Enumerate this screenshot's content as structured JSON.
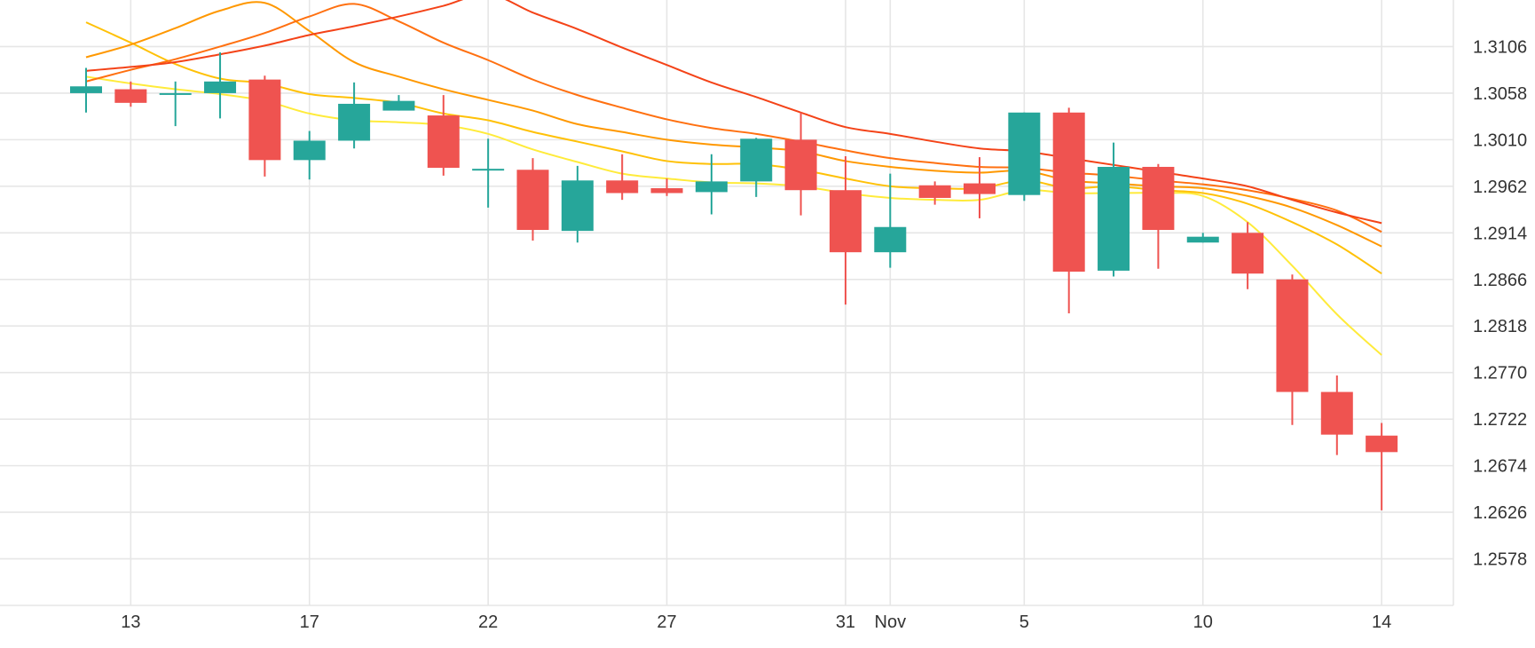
{
  "chart_data": {
    "type": "candlestick",
    "title": "",
    "xlabel": "",
    "ylabel": "",
    "ylim": [
      1.253,
      1.3154
    ],
    "x_ticks": [
      "13",
      "17",
      "22",
      "27",
      "31",
      "Nov",
      "5",
      "10",
      "14"
    ],
    "y_ticks": [
      "1.3106",
      "1.3058",
      "1.3010",
      "1.2962",
      "1.2914",
      "1.2866",
      "1.2818",
      "1.2770",
      "1.2722",
      "1.2674",
      "1.2626",
      "1.2578"
    ],
    "x_tick_positions": [
      2,
      6,
      10,
      14,
      18,
      19,
      22,
      26,
      30
    ],
    "colors": {
      "up": "#26a69a",
      "down": "#ef5350",
      "ma": [
        "#ffeb3b",
        "#ffc107",
        "#ff9800",
        "#ff7010",
        "#f44318"
      ]
    },
    "candles": [
      {
        "i": 1,
        "o": 1.3058,
        "h": 1.3084,
        "l": 1.3038,
        "c": 1.3065
      },
      {
        "i": 2,
        "o": 1.3062,
        "h": 1.307,
        "l": 1.3044,
        "c": 1.3048
      },
      {
        "i": 3,
        "o": 1.3058,
        "h": 1.307,
        "l": 1.3024,
        "c": 1.3058
      },
      {
        "i": 4,
        "o": 1.3058,
        "h": 1.31,
        "l": 1.3032,
        "c": 1.307
      },
      {
        "i": 5,
        "o": 1.3072,
        "h": 1.3076,
        "l": 1.2972,
        "c": 1.2989
      },
      {
        "i": 6,
        "o": 1.2989,
        "h": 1.3019,
        "l": 1.2969,
        "c": 1.3009
      },
      {
        "i": 7,
        "o": 1.3009,
        "h": 1.3069,
        "l": 1.3001,
        "c": 1.3047
      },
      {
        "i": 8,
        "o": 1.304,
        "h": 1.3056,
        "l": 1.304,
        "c": 1.305
      },
      {
        "i": 9,
        "o": 1.3035,
        "h": 1.3056,
        "l": 1.2973,
        "c": 1.2981
      },
      {
        "i": 10,
        "o": 1.298,
        "h": 1.3011,
        "l": 1.294,
        "c": 1.298
      },
      {
        "i": 11,
        "o": 1.2979,
        "h": 1.2991,
        "l": 1.2906,
        "c": 1.2917
      },
      {
        "i": 12,
        "o": 1.2916,
        "h": 1.2983,
        "l": 1.2904,
        "c": 1.2968
      },
      {
        "i": 13,
        "o": 1.2968,
        "h": 1.2995,
        "l": 1.2948,
        "c": 1.2955
      },
      {
        "i": 14,
        "o": 1.296,
        "h": 1.297,
        "l": 1.2952,
        "c": 1.2955
      },
      {
        "i": 15,
        "o": 1.2956,
        "h": 1.2995,
        "l": 1.2933,
        "c": 1.2967
      },
      {
        "i": 16,
        "o": 1.2967,
        "h": 1.3012,
        "l": 1.2951,
        "c": 1.3011
      },
      {
        "i": 17,
        "o": 1.301,
        "h": 1.3038,
        "l": 1.2932,
        "c": 1.2958
      },
      {
        "i": 18,
        "o": 1.2958,
        "h": 1.2993,
        "l": 1.284,
        "c": 1.2894
      },
      {
        "i": 19,
        "o": 1.2894,
        "h": 1.2975,
        "l": 1.2878,
        "c": 1.292
      },
      {
        "i": 20,
        "o": 1.2963,
        "h": 1.2967,
        "l": 1.2943,
        "c": 1.295
      },
      {
        "i": 21,
        "o": 1.2965,
        "h": 1.2992,
        "l": 1.2929,
        "c": 1.2954
      },
      {
        "i": 22,
        "o": 1.2953,
        "h": 1.3038,
        "l": 1.2947,
        "c": 1.3038
      },
      {
        "i": 23,
        "o": 1.3038,
        "h": 1.3043,
        "l": 1.2831,
        "c": 1.2874
      },
      {
        "i": 24,
        "o": 1.2875,
        "h": 1.3007,
        "l": 1.2869,
        "c": 1.2982
      },
      {
        "i": 25,
        "o": 1.2982,
        "h": 1.2985,
        "l": 1.2877,
        "c": 1.2917
      },
      {
        "i": 26,
        "o": 1.2904,
        "h": 1.2914,
        "l": 1.2904,
        "c": 1.291
      },
      {
        "i": 27,
        "o": 1.2914,
        "h": 1.2925,
        "l": 1.2856,
        "c": 1.2872
      },
      {
        "i": 28,
        "o": 1.2866,
        "h": 1.2871,
        "l": 1.2716,
        "c": 1.275
      },
      {
        "i": 29,
        "o": 1.275,
        "h": 1.2767,
        "l": 1.2685,
        "c": 1.2706
      },
      {
        "i": 30,
        "o": 1.2705,
        "h": 1.2718,
        "l": 1.2628,
        "c": 1.2688
      }
    ],
    "series": [
      {
        "color": "#ffeb3b",
        "points": [
          [
            1,
            1.3075
          ],
          [
            2,
            1.3068
          ],
          [
            3,
            1.3062
          ],
          [
            4,
            1.3057
          ],
          [
            5,
            1.305
          ],
          [
            6,
            1.3037
          ],
          [
            7,
            1.303
          ],
          [
            8,
            1.3028
          ],
          [
            9,
            1.3025
          ],
          [
            10,
            1.3016
          ],
          [
            11,
            1.3
          ],
          [
            12,
            1.2987
          ],
          [
            13,
            1.2975
          ],
          [
            14,
            1.297
          ],
          [
            15,
            1.2966
          ],
          [
            16,
            1.2965
          ],
          [
            17,
            1.2962
          ],
          [
            18,
            1.2955
          ],
          [
            19,
            1.295
          ],
          [
            20,
            1.2948
          ],
          [
            21,
            1.2948
          ],
          [
            22,
            1.2958
          ],
          [
            23,
            1.2955
          ],
          [
            24,
            1.2955
          ],
          [
            25,
            1.2955
          ],
          [
            26,
            1.2952
          ],
          [
            27,
            1.2925
          ],
          [
            28,
            1.288
          ],
          [
            29,
            1.283
          ],
          [
            30,
            1.2788
          ]
        ]
      },
      {
        "color": "#ffc107",
        "points": [
          [
            1,
            1.3131
          ],
          [
            2,
            1.311
          ],
          [
            3,
            1.3088
          ],
          [
            4,
            1.3073
          ],
          [
            5,
            1.3068
          ],
          [
            6,
            1.3057
          ],
          [
            7,
            1.3053
          ],
          [
            8,
            1.3048
          ],
          [
            9,
            1.3037
          ],
          [
            10,
            1.303
          ],
          [
            11,
            1.3018
          ],
          [
            12,
            1.3008
          ],
          [
            13,
            1.2998
          ],
          [
            14,
            1.2988
          ],
          [
            15,
            1.2985
          ],
          [
            16,
            1.2985
          ],
          [
            17,
            1.2979
          ],
          [
            18,
            1.297
          ],
          [
            19,
            1.2962
          ],
          [
            20,
            1.296
          ],
          [
            21,
            1.296
          ],
          [
            22,
            1.2968
          ],
          [
            23,
            1.296
          ],
          [
            24,
            1.2962
          ],
          [
            25,
            1.2958
          ],
          [
            26,
            1.2955
          ],
          [
            27,
            1.2944
          ],
          [
            28,
            1.2925
          ],
          [
            29,
            1.2902
          ],
          [
            30,
            1.2872
          ]
        ]
      },
      {
        "color": "#ff9800",
        "points": [
          [
            1,
            1.3095
          ],
          [
            2,
            1.3108
          ],
          [
            3,
            1.3125
          ],
          [
            4,
            1.3143
          ],
          [
            5,
            1.3151
          ],
          [
            6,
            1.3122
          ],
          [
            7,
            1.309
          ],
          [
            8,
            1.3075
          ],
          [
            9,
            1.3062
          ],
          [
            10,
            1.3051
          ],
          [
            11,
            1.304
          ],
          [
            12,
            1.3026
          ],
          [
            13,
            1.3018
          ],
          [
            14,
            1.301
          ],
          [
            15,
            1.3005
          ],
          [
            16,
            1.3002
          ],
          [
            17,
            1.2998
          ],
          [
            18,
            1.2988
          ],
          [
            19,
            1.2982
          ],
          [
            20,
            1.2978
          ],
          [
            21,
            1.2976
          ],
          [
            22,
            1.2978
          ],
          [
            23,
            1.2968
          ],
          [
            24,
            1.2965
          ],
          [
            25,
            1.2962
          ],
          [
            26,
            1.296
          ],
          [
            27,
            1.2952
          ],
          [
            28,
            1.294
          ],
          [
            29,
            1.2922
          ],
          [
            30,
            1.29
          ]
        ]
      },
      {
        "color": "#ff7010",
        "points": [
          [
            1,
            1.307
          ],
          [
            2,
            1.3082
          ],
          [
            3,
            1.3093
          ],
          [
            4,
            1.3106
          ],
          [
            5,
            1.312
          ],
          [
            6,
            1.3137
          ],
          [
            7,
            1.315
          ],
          [
            8,
            1.3132
          ],
          [
            9,
            1.311
          ],
          [
            10,
            1.3092
          ],
          [
            11,
            1.3072
          ],
          [
            12,
            1.3056
          ],
          [
            13,
            1.3043
          ],
          [
            14,
            1.3031
          ],
          [
            15,
            1.3022
          ],
          [
            16,
            1.3016
          ],
          [
            17,
            1.3008
          ],
          [
            18,
            1.2999
          ],
          [
            19,
            1.2991
          ],
          [
            20,
            1.2986
          ],
          [
            21,
            1.2982
          ],
          [
            22,
            1.2981
          ],
          [
            23,
            1.2976
          ],
          [
            24,
            1.2973
          ],
          [
            25,
            1.2968
          ],
          [
            26,
            1.2964
          ],
          [
            27,
            1.2958
          ],
          [
            28,
            1.2949
          ],
          [
            29,
            1.2937
          ],
          [
            30,
            1.2915
          ]
        ]
      },
      {
        "color": "#f44318",
        "points": [
          [
            1,
            1.3081
          ],
          [
            2,
            1.3085
          ],
          [
            3,
            1.309
          ],
          [
            4,
            1.3098
          ],
          [
            5,
            1.3107
          ],
          [
            6,
            1.3118
          ],
          [
            7,
            1.3127
          ],
          [
            8,
            1.3137
          ],
          [
            9,
            1.3148
          ],
          [
            10,
            1.316
          ],
          [
            11,
            1.3141
          ],
          [
            12,
            1.3124
          ],
          [
            13,
            1.3105
          ],
          [
            14,
            1.3087
          ],
          [
            15,
            1.3069
          ],
          [
            16,
            1.3054
          ],
          [
            17,
            1.3038
          ],
          [
            18,
            1.3023
          ],
          [
            19,
            1.3016
          ],
          [
            20,
            1.3008
          ],
          [
            21,
            1.3001
          ],
          [
            22,
            1.2998
          ],
          [
            23,
            1.2991
          ],
          [
            24,
            1.2984
          ],
          [
            25,
            1.2977
          ],
          [
            26,
            1.297
          ],
          [
            27,
            1.2962
          ],
          [
            28,
            1.2948
          ],
          [
            29,
            1.2935
          ],
          [
            30,
            1.2924
          ]
        ]
      }
    ]
  }
}
